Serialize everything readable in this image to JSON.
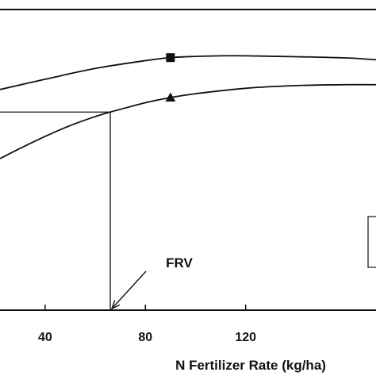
{
  "chart_data": {
    "type": "line",
    "title": "",
    "xlabel": "N Fertilizer Rate (kg/ha)",
    "ylabel": "",
    "xlim": [
      22,
      172
    ],
    "ylim": [
      0,
      1
    ],
    "x_ticks": [
      40,
      80,
      120
    ],
    "grid": false,
    "legend": "partially visible box at right edge, cropped",
    "series": [
      {
        "marker": "square",
        "x": [
          22,
          40,
          60,
          80,
          90,
          100,
          110,
          120,
          140,
          160,
          172
        ],
        "y": [
          0.734,
          0.768,
          0.804,
          0.83,
          0.84,
          0.844,
          0.846,
          0.846,
          0.843,
          0.839,
          0.833
        ],
        "marker_x": 90,
        "marker_y": 0.84
      },
      {
        "marker": "triangle",
        "x": [
          22,
          30,
          40,
          50,
          60,
          66,
          70,
          80,
          90,
          100,
          120,
          140,
          160,
          172
        ],
        "y": [
          0.504,
          0.538,
          0.578,
          0.614,
          0.644,
          0.659,
          0.668,
          0.69,
          0.707,
          0.72,
          0.738,
          0.747,
          0.75,
          0.75
        ],
        "marker_x": 90,
        "marker_y": 0.707
      }
    ],
    "reference_lines": {
      "horizontal_y": 0.659,
      "horizontal_from_x": 22,
      "horizontal_to_x": 66,
      "vertical_x": 66
    },
    "annotation": {
      "text": "FRV",
      "points_to_x": 66,
      "points_to_y": 0
    }
  }
}
